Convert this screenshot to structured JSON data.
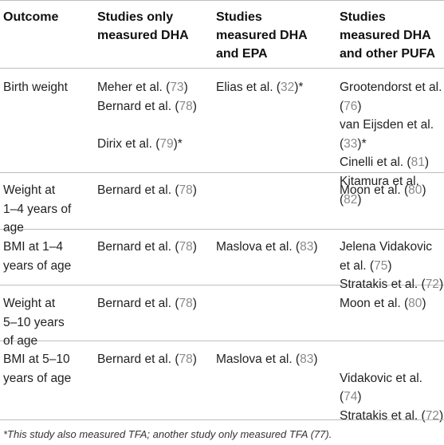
{
  "header": {
    "outcome": "Outcome",
    "col_dha": [
      "Studies only",
      "measured DHA"
    ],
    "col_dha_epa": [
      "Studies",
      "measured DHA",
      "and EPA"
    ],
    "col_dha_pufa": [
      "Studies",
      "measured DHA",
      "and other PUFA"
    ]
  },
  "rows": [
    {
      "outcome": [
        "Birth weight"
      ],
      "dha": [
        [
          "Meher et al. (",
          "73",
          ")"
        ],
        [
          "Bernard et al. (",
          "78",
          ")"
        ],
        [
          "",
          "",
          ""
        ],
        [
          "Dirix et al. (",
          "79",
          ")*"
        ]
      ],
      "dha_epa": [
        [
          "Elias et al. (",
          "32",
          ")*"
        ]
      ],
      "dha_pufa": [
        [
          "Grootendorst et al.",
          "",
          ""
        ],
        [
          "(",
          "76",
          ")"
        ],
        [
          "van Eijsden et al.",
          "",
          ""
        ],
        [
          "(",
          "33",
          ")*"
        ],
        [
          "Cinelli et al. (",
          "81",
          ")"
        ],
        [
          "Kitamura et al. (",
          "82",
          ")"
        ]
      ]
    },
    {
      "outcome": [
        "Weight at",
        "1–4 years of",
        "age"
      ],
      "dha": [
        [
          "Bernard et al. (",
          "78",
          ")"
        ]
      ],
      "dha_epa": [],
      "dha_pufa": [
        [
          "Moon et al. (",
          "80",
          ")"
        ]
      ]
    },
    {
      "outcome": [
        "BMI at 1–4",
        "years of age"
      ],
      "dha": [
        [
          "Bernard et al. (",
          "78",
          ")"
        ]
      ],
      "dha_epa": [
        [
          "Maslova et al. (",
          "83",
          ")"
        ]
      ],
      "dha_pufa": [
        [
          "Jelena Vidakovic",
          "",
          ""
        ],
        [
          "et al. (",
          "75",
          ")"
        ],
        [
          "Stratakis et al. (",
          "72",
          ")"
        ]
      ]
    },
    {
      "outcome": [
        "Weight at",
        "5–10 years",
        "of age"
      ],
      "dha": [
        [
          "Bernard et al. (",
          "78",
          ")"
        ]
      ],
      "dha_epa": [],
      "dha_pufa": [
        [
          "Moon et al. (",
          "80",
          ")"
        ]
      ]
    },
    {
      "outcome": [
        "BMI at 5–10",
        "years of age"
      ],
      "dha": [
        [
          "Bernard et al. (",
          "78",
          ")"
        ]
      ],
      "dha_epa": [
        [
          "Maslova et al. (",
          "83",
          ")"
        ]
      ],
      "dha_pufa": [
        [
          "",
          "",
          ""
        ],
        [
          "Vidakovic et al.",
          "",
          ""
        ],
        [
          "(",
          "74",
          ")"
        ],
        [
          "Stratakis et al. (",
          "72",
          ")"
        ]
      ]
    }
  ],
  "footnote": "*This study also measured TFA; another study only measured TFA (77)."
}
